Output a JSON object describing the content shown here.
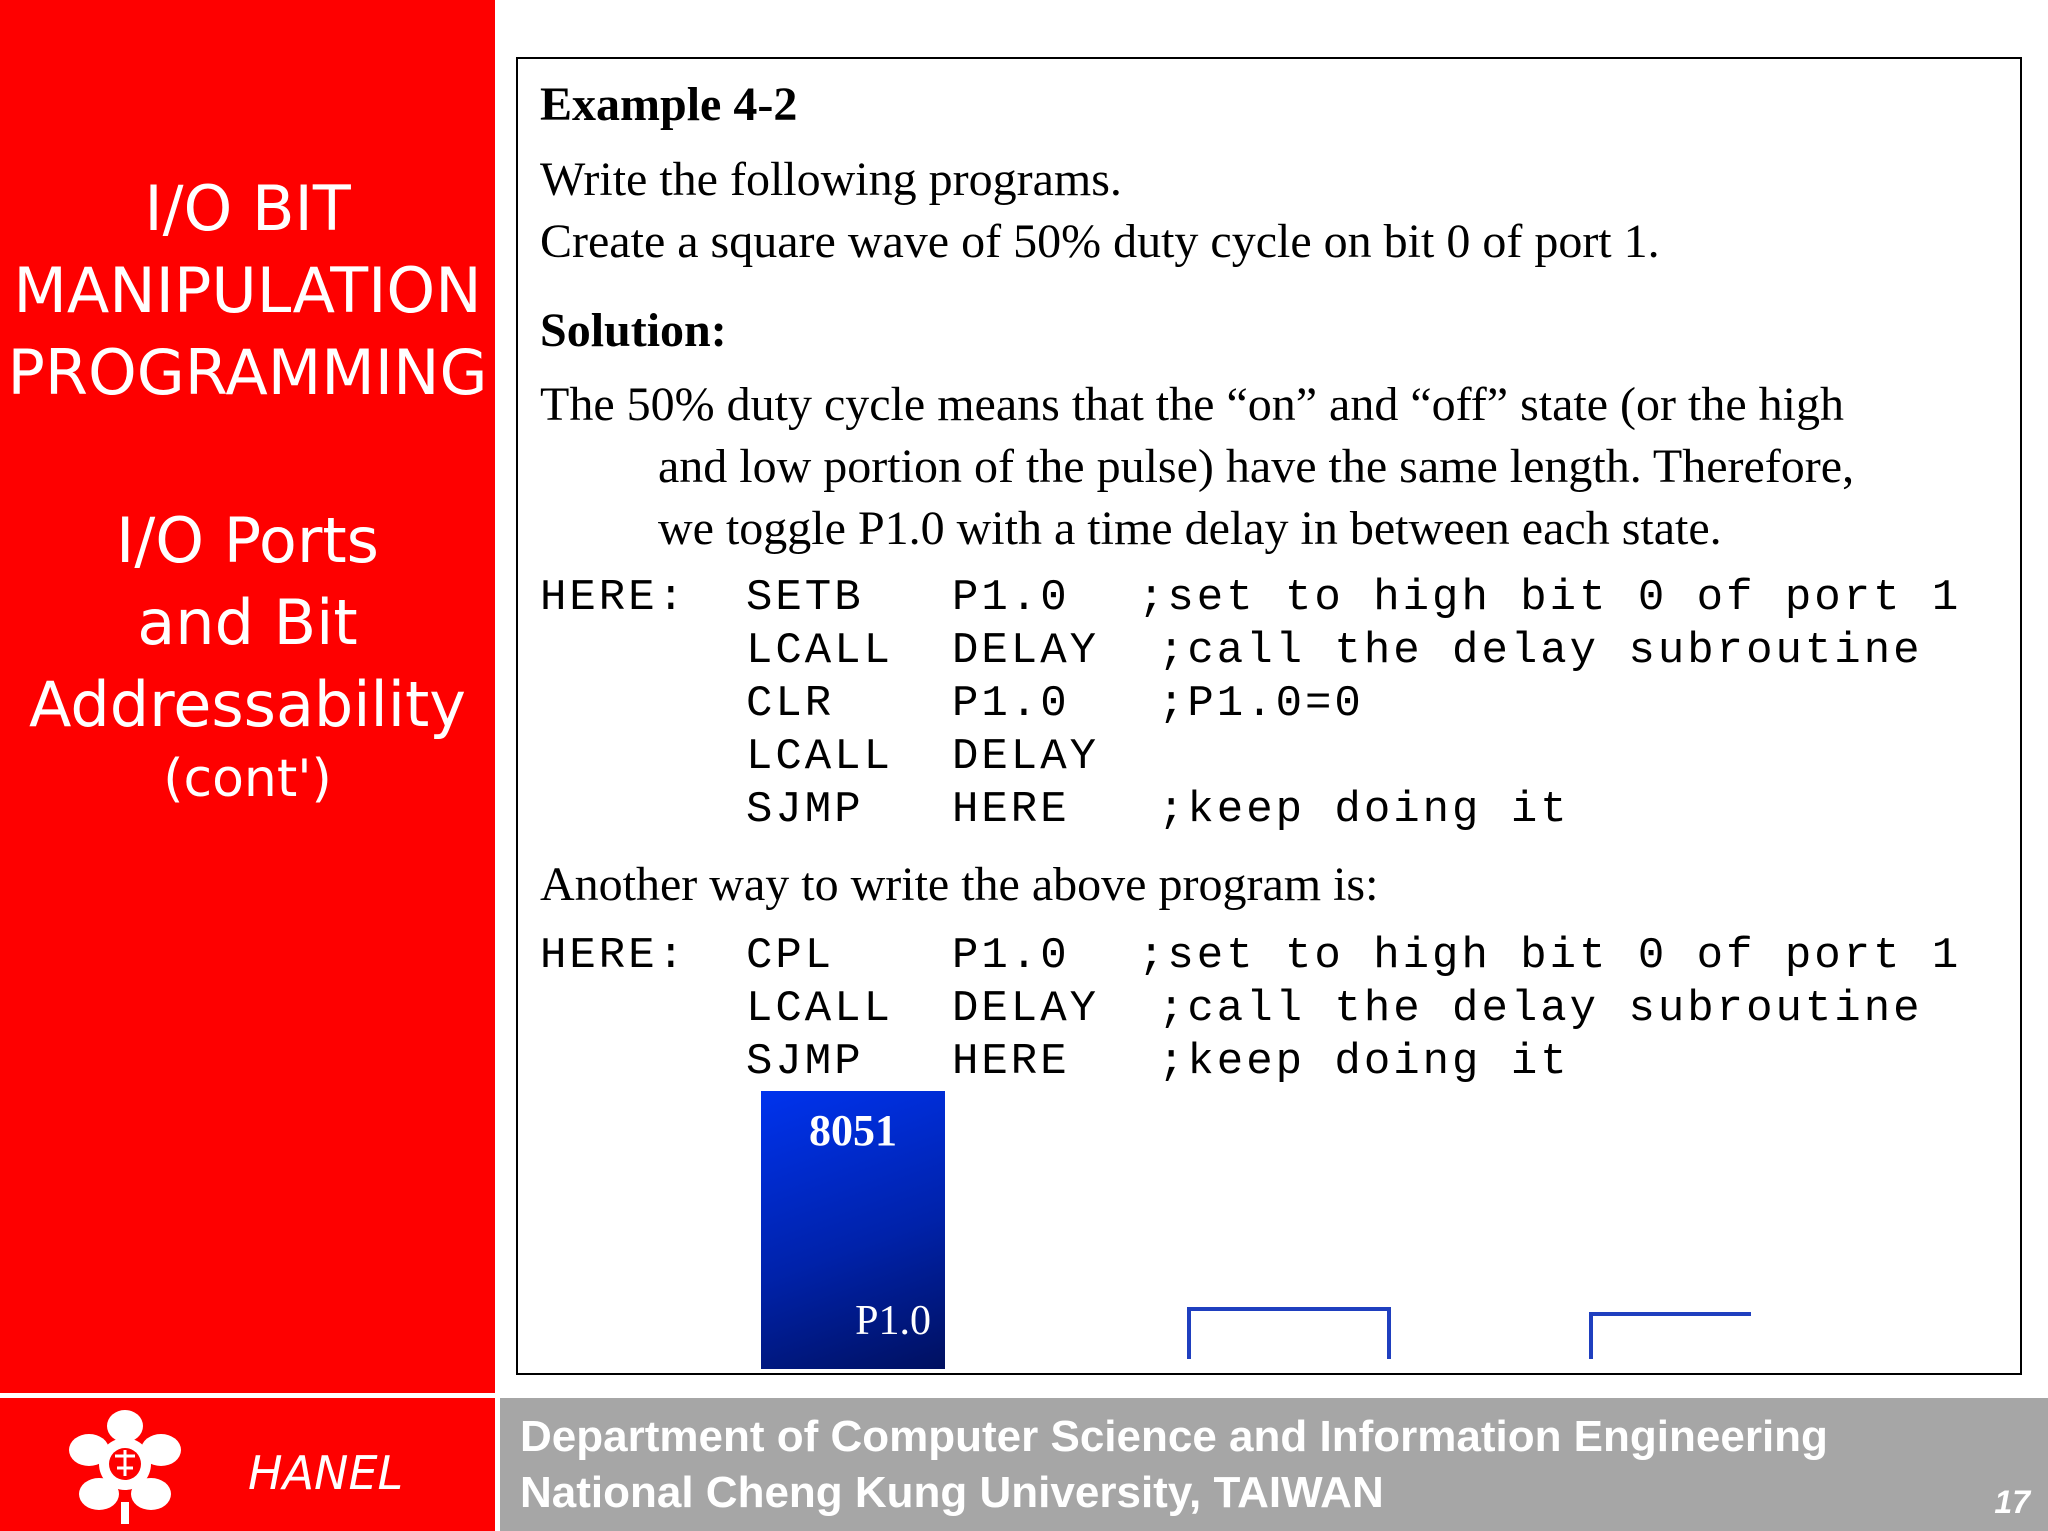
{
  "sidebar": {
    "title_lines": [
      "I/O BIT",
      "MANIPULATION",
      "PROGRAMMING"
    ],
    "subtitle_lines": [
      "I/O Ports",
      "and Bit",
      "Addressability"
    ],
    "cont": "(cont')"
  },
  "content": {
    "example_title": "Example 4-2",
    "prompt_line1": "Write the following programs.",
    "prompt_line2": "Create a square wave of 50% duty cycle on bit 0 of port 1.",
    "solution_label": "Solution:",
    "paragraph_line1": "The 50% duty cycle means that the “on” and “off” state (or the high",
    "paragraph_line2": "and low portion of the pulse) have the same length. Therefore,",
    "paragraph_line3": "we toggle P1.0 with a time delay in between each state.",
    "code1": [
      {
        "label": "HERE:",
        "op": "SETB",
        "arg": "P1.0",
        "comment": ";set to high bit 0 of port 1"
      },
      {
        "label": "",
        "op": "LCALL",
        "arg": "DELAY",
        "comment": ";call the delay subroutine"
      },
      {
        "label": "",
        "op": "CLR",
        "arg": "P1.0",
        "comment": ";P1.0=0"
      },
      {
        "label": "",
        "op": "LCALL",
        "arg": "DELAY",
        "comment": ""
      },
      {
        "label": "",
        "op": "SJMP",
        "arg": "HERE",
        "comment": ";keep doing it"
      }
    ],
    "another_way": "Another way to write the above program is:",
    "code2": [
      {
        "label": "HERE:",
        "op": "CPL",
        "arg": "P1.0",
        "comment": ";set to high bit 0 of port 1"
      },
      {
        "label": "",
        "op": "LCALL",
        "arg": "DELAY",
        "comment": ";call the delay subroutine"
      },
      {
        "label": "",
        "op": "SJMP",
        "arg": "HERE",
        "comment": ";keep doing it"
      }
    ],
    "chip_name": "8051",
    "chip_pin": "P1.0"
  },
  "footer": {
    "author": "HANEL",
    "dept": "Department of Computer Science and Information Engineering",
    "university": "National Cheng Kung University, TAIWAN",
    "page_number": "17"
  },
  "colors": {
    "sidebar_red": "#fe0000",
    "footer_gray": "#a6a6a6",
    "chip_blue": "#0022aa",
    "wave_blue": "#1f3fbf"
  }
}
